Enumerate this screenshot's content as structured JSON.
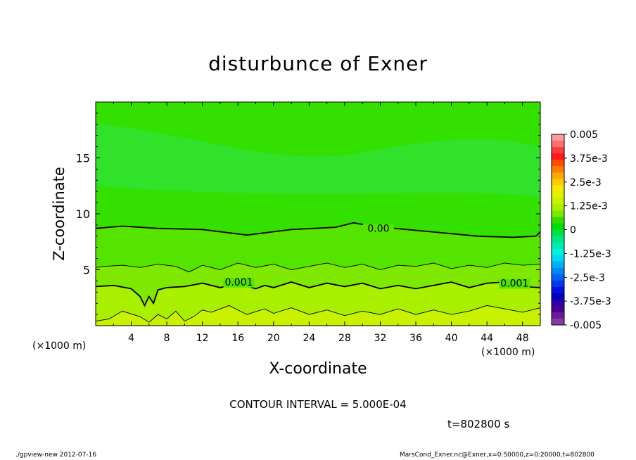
{
  "chart_data": {
    "type": "contour",
    "title": "disturbunce of Exner",
    "xlabel": "X-coordinate",
    "ylabel": "Z-coordinate",
    "x_unit": "(×1000 m)",
    "y_unit": "(×1000 m)",
    "xlim": [
      0,
      50
    ],
    "ylim": [
      0,
      20
    ],
    "x_ticks": [
      4,
      8,
      12,
      16,
      20,
      24,
      28,
      32,
      36,
      40,
      44,
      48
    ],
    "y_ticks": [
      5,
      10,
      15
    ],
    "contour_interval": "CONTOUR INTERVAL = 5.000E-04",
    "time_label": "t=802800 s",
    "contour_labels": [
      "0.00",
      "0.001",
      "0.001"
    ],
    "contours": [
      {
        "level": 0.0,
        "style": "thick",
        "x": [
          0,
          3,
          7,
          12,
          17,
          22,
          27,
          29,
          31,
          35,
          39,
          43,
          47,
          49.5,
          50
        ],
        "z": [
          8.7,
          8.9,
          8.7,
          8.6,
          8.1,
          8.6,
          8.8,
          9.2,
          8.9,
          8.6,
          8.3,
          8.0,
          7.9,
          8.0,
          8.4
        ]
      },
      {
        "level": 0.0005,
        "style": "thin",
        "x": [
          0,
          1,
          3,
          5,
          7,
          9,
          10.5,
          12,
          14,
          16,
          18,
          20,
          22,
          24,
          26,
          28,
          30,
          32,
          34,
          36,
          38,
          40,
          42,
          44,
          46,
          48,
          50
        ],
        "z": [
          5.2,
          5.3,
          5.4,
          5.2,
          5.5,
          5.3,
          4.8,
          5.4,
          5.0,
          5.6,
          5.2,
          5.5,
          5.0,
          5.3,
          5.6,
          5.2,
          5.5,
          5.0,
          5.4,
          5.3,
          5.6,
          5.1,
          5.4,
          5.2,
          5.6,
          5.4,
          5.5
        ]
      },
      {
        "level": 0.001,
        "style": "thick",
        "x": [
          0,
          2,
          4,
          5,
          5.5,
          6,
          6.5,
          7,
          8,
          10,
          12,
          14,
          16,
          18,
          19,
          20,
          22,
          24,
          26,
          28,
          30,
          32,
          34,
          36,
          38,
          40,
          42,
          44,
          46,
          48,
          50
        ],
        "z": [
          3.5,
          3.6,
          3.3,
          2.6,
          1.8,
          2.6,
          2.0,
          3.2,
          3.4,
          3.5,
          3.8,
          3.4,
          3.8,
          3.3,
          3.6,
          3.4,
          3.9,
          3.4,
          3.8,
          3.5,
          3.8,
          3.3,
          3.6,
          3.3,
          3.6,
          3.9,
          3.4,
          3.8,
          3.9,
          3.5,
          3.4
        ]
      },
      {
        "level": 0.0015,
        "style": "thin",
        "x": [
          0,
          1.5,
          3,
          5,
          6,
          7,
          8,
          9,
          10,
          11,
          12,
          13,
          15,
          17,
          19,
          20,
          22,
          24,
          26,
          28,
          30,
          32,
          34,
          36,
          38,
          40,
          42,
          44,
          46,
          48,
          50
        ],
        "z": [
          0.4,
          0.6,
          1.3,
          0.8,
          0.3,
          1.0,
          0.6,
          1.3,
          0.4,
          0.8,
          1.4,
          1.2,
          1.8,
          1.0,
          1.5,
          1.1,
          1.6,
          1.0,
          1.4,
          0.9,
          1.3,
          1.0,
          1.5,
          1.0,
          1.4,
          1.0,
          1.3,
          1.8,
          1.5,
          1.2,
          1.6
        ]
      }
    ],
    "colorbar": {
      "labels": [
        "0.005",
        "3.75e-3",
        "2.5e-3",
        "1.25e-3",
        "0",
        "-1.25e-3",
        "-2.5e-3",
        "-3.75e-3",
        "-0.005"
      ],
      "colors": [
        "#ff9a9a",
        "#ff6f6f",
        "#ff3b3b",
        "#ff1a1a",
        "#ff4e00",
        "#ff7c00",
        "#ffa800",
        "#ffcc00",
        "#f2ea00",
        "#e2f200",
        "#c6f200",
        "#a8f000",
        "#7ae800",
        "#33dd00",
        "#00dd00",
        "#00e040",
        "#00e780",
        "#00ecb2",
        "#00f2e0",
        "#00d8f6",
        "#00b0f8",
        "#0088f8",
        "#0060f4",
        "#0038ee",
        "#0010e0",
        "#0000c0",
        "#2a00a8",
        "#4b0092",
        "#6a1a9c",
        "#8a3aa6"
      ],
      "min": -0.005,
      "max": 0.005
    }
  },
  "footer": {
    "left": "./gpview-new   2012-07-16",
    "right": "MarsCond_Exner.nc@Exner,x=0:50000,z=0:20000,t=802800"
  }
}
